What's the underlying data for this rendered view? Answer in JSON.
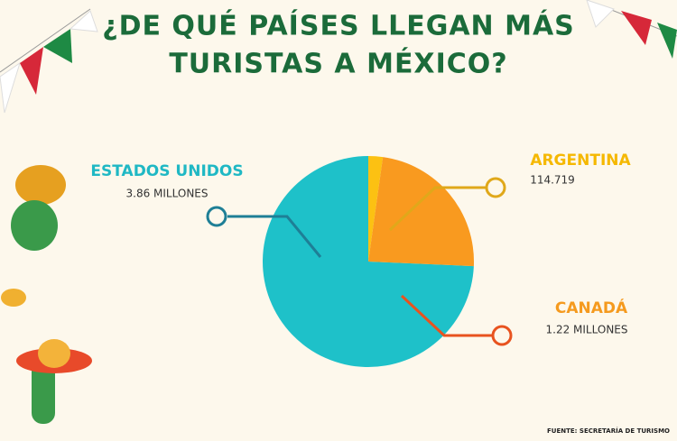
{
  "chart_data": {
    "type": "pie",
    "title": "¿DE QUÉ PAÍSES LLEGAN MÁS",
    "subtitle": "TURISTAS A MÉXICO?",
    "categories": [
      "ESTADOS UNIDOS",
      "ARGENTINA",
      "CANADÁ"
    ],
    "values": [
      3.86,
      0.114719,
      1.22
    ],
    "value_labels": [
      "3.86 MILLONES",
      "114.719",
      "1.22 MILLONES"
    ],
    "colors": [
      "#1ec1c9",
      "#fcc112",
      "#f99a1f"
    ],
    "source": "FUENTE: SECRETARÍA DE TURISMO"
  }
}
